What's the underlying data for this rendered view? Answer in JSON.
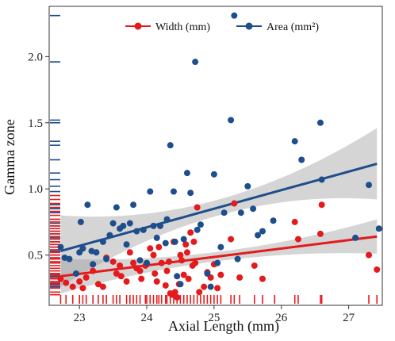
{
  "chart_data": {
    "type": "scatter",
    "title": "",
    "xlabel": "Axial Length (mm)",
    "ylabel": "Gamma zone",
    "xlim": [
      22.55,
      27.5
    ],
    "ylim": [
      0.12,
      2.38
    ],
    "xticks": [
      23,
      24,
      25,
      26,
      27
    ],
    "yticks": [
      0.5,
      1.0,
      1.5,
      2.0
    ],
    "xtick_labels": [
      "23",
      "24",
      "25",
      "26",
      "27"
    ],
    "ytick_labels": [
      "0.5",
      "1.0",
      "1.5",
      "2.0"
    ],
    "grid": false,
    "legend_position": "top-center",
    "series": [
      {
        "name": "Width (mm)",
        "color": "#e41a1c",
        "points": [
          [
            22.72,
            0.32
          ],
          [
            22.8,
            0.29
          ],
          [
            22.9,
            0.26
          ],
          [
            23.0,
            0.3
          ],
          [
            23.05,
            0.25
          ],
          [
            23.1,
            0.33
          ],
          [
            23.2,
            0.38
          ],
          [
            23.28,
            0.28
          ],
          [
            23.35,
            0.26
          ],
          [
            23.4,
            0.48
          ],
          [
            23.5,
            0.45
          ],
          [
            23.55,
            0.36
          ],
          [
            23.6,
            0.42
          ],
          [
            23.62,
            0.34
          ],
          [
            23.7,
            0.3
          ],
          [
            23.75,
            0.52
          ],
          [
            23.8,
            0.44
          ],
          [
            23.85,
            0.4
          ],
          [
            23.9,
            0.38
          ],
          [
            23.92,
            0.32
          ],
          [
            23.98,
            0.42
          ],
          [
            24.0,
            0.43
          ],
          [
            24.05,
            0.55
          ],
          [
            24.1,
            0.5
          ],
          [
            24.12,
            0.36
          ],
          [
            24.15,
            0.3
          ],
          [
            24.18,
            0.56
          ],
          [
            24.22,
            0.44
          ],
          [
            24.28,
            0.27
          ],
          [
            24.3,
            0.38
          ],
          [
            24.33,
            0.45
          ],
          [
            24.35,
            0.21
          ],
          [
            24.38,
            0.2
          ],
          [
            24.4,
            0.6
          ],
          [
            24.42,
            0.22
          ],
          [
            24.45,
            0.18
          ],
          [
            24.48,
            0.28
          ],
          [
            24.5,
            0.5
          ],
          [
            24.52,
            0.46
          ],
          [
            24.55,
            0.35
          ],
          [
            24.58,
            0.58
          ],
          [
            24.6,
            0.52
          ],
          [
            24.62,
            0.32
          ],
          [
            24.65,
            0.67
          ],
          [
            24.68,
            0.42
          ],
          [
            24.7,
            0.6
          ],
          [
            24.72,
            0.44
          ],
          [
            24.75,
            0.86
          ],
          [
            24.78,
            0.22
          ],
          [
            24.85,
            0.26
          ],
          [
            24.9,
            0.37
          ],
          [
            24.95,
            0.33
          ],
          [
            25.0,
            0.43
          ],
          [
            25.05,
            0.25
          ],
          [
            25.1,
            0.35
          ],
          [
            25.25,
            0.62
          ],
          [
            25.3,
            0.89
          ],
          [
            25.38,
            0.33
          ],
          [
            25.6,
            0.42
          ],
          [
            25.72,
            0.32
          ],
          [
            26.2,
            0.75
          ],
          [
            26.25,
            0.62
          ],
          [
            26.58,
            0.66
          ],
          [
            26.6,
            0.88
          ],
          [
            27.3,
            0.5
          ],
          [
            27.42,
            0.39
          ]
        ],
        "fit": {
          "x": [
            22.72,
            27.42
          ],
          "y": [
            0.34,
            0.64
          ]
        }
      },
      {
        "name": "Area (mm²)",
        "color": "#1f4e8c",
        "points": [
          [
            22.72,
            0.56
          ],
          [
            22.78,
            0.48
          ],
          [
            22.85,
            0.47
          ],
          [
            22.95,
            0.36
          ],
          [
            23.0,
            0.52
          ],
          [
            23.05,
            0.55
          ],
          [
            23.12,
            0.88
          ],
          [
            23.18,
            0.53
          ],
          [
            23.2,
            0.43
          ],
          [
            23.25,
            0.52
          ],
          [
            23.35,
            0.6
          ],
          [
            23.4,
            0.47
          ],
          [
            23.45,
            0.65
          ],
          [
            23.5,
            0.74
          ],
          [
            23.55,
            0.86
          ],
          [
            23.6,
            0.7
          ],
          [
            23.65,
            0.72
          ],
          [
            23.7,
            0.58
          ],
          [
            23.75,
            0.74
          ],
          [
            23.8,
            0.88
          ],
          [
            23.85,
            0.68
          ],
          [
            23.9,
            0.46
          ],
          [
            23.95,
            0.69
          ],
          [
            24.0,
            0.44
          ],
          [
            24.05,
            0.98
          ],
          [
            24.1,
            0.72
          ],
          [
            24.15,
            0.63
          ],
          [
            24.2,
            0.72
          ],
          [
            24.28,
            0.59
          ],
          [
            24.3,
            0.77
          ],
          [
            24.35,
            1.33
          ],
          [
            24.4,
            0.98
          ],
          [
            24.42,
            0.6
          ],
          [
            24.45,
            0.34
          ],
          [
            24.5,
            0.28
          ],
          [
            24.55,
            0.62
          ],
          [
            24.6,
            1.12
          ],
          [
            24.65,
            0.97
          ],
          [
            24.72,
            1.96
          ],
          [
            24.75,
            0.69
          ],
          [
            24.8,
            0.73
          ],
          [
            24.9,
            0.36
          ],
          [
            24.95,
            0.26
          ],
          [
            25.0,
            1.11
          ],
          [
            25.05,
            0.44
          ],
          [
            25.1,
            0.56
          ],
          [
            25.15,
            0.82
          ],
          [
            25.25,
            1.52
          ],
          [
            25.3,
            2.31
          ],
          [
            25.4,
            0.82
          ],
          [
            25.5,
            1.02
          ],
          [
            25.58,
            0.85
          ],
          [
            25.65,
            0.65
          ],
          [
            25.72,
            0.68
          ],
          [
            26.2,
            1.36
          ],
          [
            26.3,
            1.22
          ],
          [
            26.58,
            1.5
          ],
          [
            26.6,
            1.07
          ],
          [
            27.3,
            1.03
          ],
          [
            27.45,
            0.7
          ],
          [
            27.1,
            0.63
          ],
          [
            25.88,
            0.76
          ],
          [
            25.35,
            0.47
          ],
          [
            23.02,
            0.75
          ]
        ],
        "fit": {
          "x": [
            22.72,
            27.42
          ],
          "y": [
            0.53,
            1.19
          ]
        }
      }
    ],
    "rug_x": [
      22.72,
      22.8,
      22.9,
      23.0,
      23.05,
      23.1,
      23.2,
      23.28,
      23.35,
      23.4,
      23.5,
      23.55,
      23.6,
      23.7,
      23.75,
      23.8,
      23.85,
      23.9,
      23.98,
      24.0,
      24.05,
      24.1,
      24.15,
      24.18,
      24.22,
      24.28,
      24.3,
      24.35,
      24.4,
      24.45,
      24.5,
      24.55,
      24.6,
      24.65,
      24.7,
      24.75,
      24.8,
      24.85,
      24.9,
      24.95,
      25.0,
      25.05,
      25.1,
      25.25,
      25.3,
      25.38,
      25.6,
      25.72,
      25.9,
      26.2,
      26.25,
      26.58,
      26.6,
      27.3,
      27.42
    ],
    "rug_y_red": [
      0.2,
      0.22,
      0.25,
      0.27,
      0.29,
      0.3,
      0.32,
      0.33,
      0.35,
      0.36,
      0.38,
      0.4,
      0.42,
      0.44,
      0.45,
      0.47,
      0.48,
      0.5,
      0.52,
      0.54,
      0.56,
      0.58,
      0.6,
      0.62,
      0.64,
      0.66,
      0.68,
      0.7,
      0.72,
      0.75,
      0.77,
      0.8,
      0.83,
      0.86,
      0.89,
      0.92,
      0.95
    ],
    "rug_y_blue": [
      0.26,
      0.28,
      0.34,
      0.36,
      0.44,
      0.47,
      0.5,
      0.53,
      0.56,
      0.58,
      0.6,
      0.63,
      0.66,
      0.68,
      0.7,
      0.72,
      0.74,
      0.77,
      0.82,
      0.85,
      0.88,
      0.98,
      1.02,
      1.07,
      1.12,
      1.22,
      1.33,
      1.36,
      1.5,
      1.52,
      1.96,
      2.31
    ]
  }
}
